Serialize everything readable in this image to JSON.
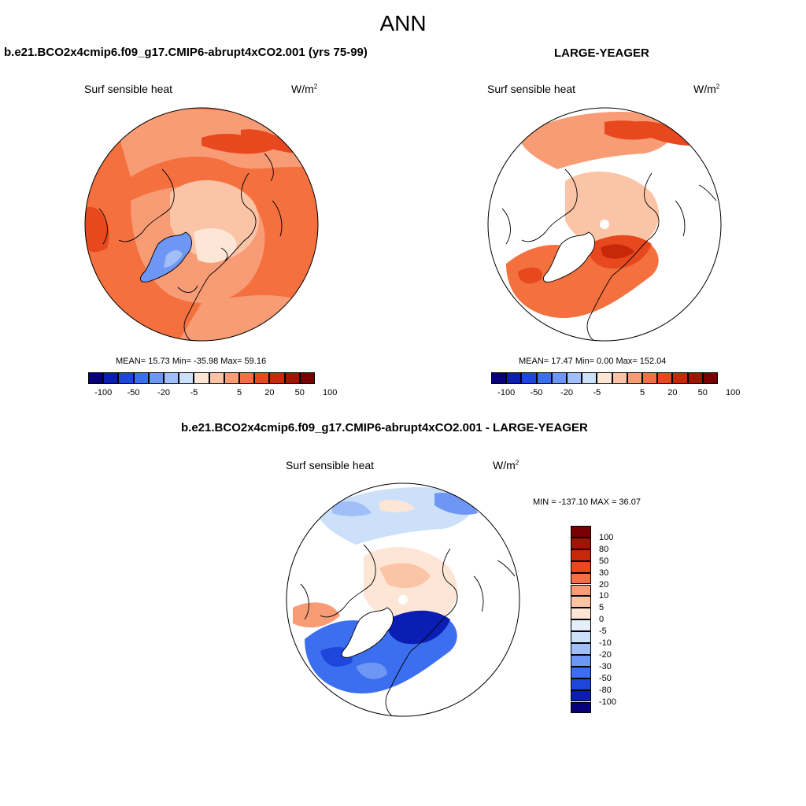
{
  "main_title": "ANN",
  "panel_left": {
    "case_title": "b.e21.BCO2x4cmip6.f09_g17.CMIP6-abrupt4xCO2.001 (yrs 75-99)",
    "variable": "Surf sensible heat",
    "units_base": "W/m",
    "units_exp": "2",
    "stats": "MEAN=  15.73  Min= -35.98  Max=  59.16"
  },
  "panel_right": {
    "case_title": "LARGE-YEAGER",
    "variable": "Surf sensible heat",
    "units_base": "W/m",
    "units_exp": "2",
    "stats": "MEAN=  17.47  Min=   0.00  Max= 152.04"
  },
  "panel_diff": {
    "case_title": "b.e21.BCO2x4cmip6.f09_g17.CMIP6-abrupt4xCO2.001 - LARGE-YEAGER",
    "variable": "Surf sensible heat",
    "units_base": "W/m",
    "units_exp": "2",
    "stats": "MIN = -137.10 MAX =  36.07"
  },
  "colorbar_horizontal": {
    "colors": [
      "#08007a",
      "#0a1eb4",
      "#1e46dc",
      "#3c6ef0",
      "#6e96f5",
      "#a0bef8",
      "#cce0fa",
      "#fde6d6",
      "#fcc4a6",
      "#f89c76",
      "#f46e46",
      "#e8481e",
      "#c8280a",
      "#a01400",
      "#780000"
    ],
    "labels": [
      "-100",
      "-50",
      "-20",
      "-5",
      "5",
      "20",
      "50",
      "100"
    ]
  },
  "colorbar_vertical": {
    "colors": [
      "#780000",
      "#a01400",
      "#c8280a",
      "#e8481e",
      "#f46e46",
      "#f89c76",
      "#fcc4a6",
      "#fde6d6",
      "#e4eefc",
      "#cce0fa",
      "#a0bef8",
      "#6e96f5",
      "#3c6ef0",
      "#1e46dc",
      "#0a1eb4",
      "#08007a"
    ],
    "labels": [
      "100",
      "80",
      "50",
      "30",
      "20",
      "10",
      "5",
      "0",
      "-5",
      "-10",
      "-20",
      "-30",
      "-50",
      "-80",
      "-100"
    ]
  }
}
